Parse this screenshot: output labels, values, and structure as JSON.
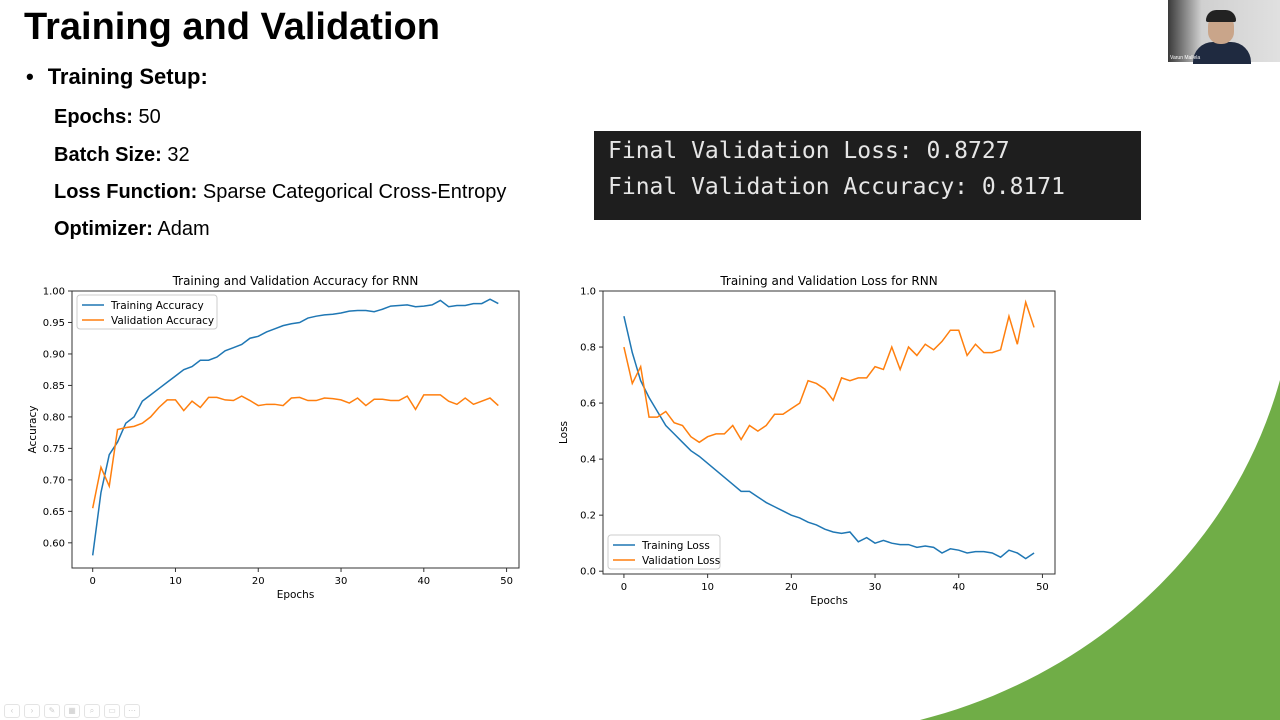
{
  "slide": {
    "title": "Training and Validation",
    "setup_heading": "Training Setup:",
    "params": [
      {
        "label": "Epochs:",
        "value": "50"
      },
      {
        "label": "Batch Size:",
        "value": "32"
      },
      {
        "label": "Loss Function:",
        "value": "Sparse Categorical Cross-Entropy"
      },
      {
        "label": "Optimizer:",
        "value": "Adam"
      }
    ],
    "console_lines": [
      "Final Validation Loss: 0.8727",
      "Final Validation Accuracy: 0.8171"
    ],
    "accent_color": "#70ad47"
  },
  "webcam": {
    "participant_name": "Varun Mallela"
  },
  "chart_data": [
    {
      "type": "line",
      "title": "Training and Validation Accuracy for RNN",
      "xlabel": "Epochs",
      "ylabel": "Accuracy",
      "xlim": [
        -2.5,
        51.5
      ],
      "ylim": [
        0.56,
        1.0
      ],
      "xticks": [
        0,
        10,
        20,
        30,
        40,
        50
      ],
      "yticks": [
        "0.60",
        "0.65",
        "0.70",
        "0.75",
        "0.80",
        "0.85",
        "0.90",
        "0.95",
        "1.00"
      ],
      "grid": false,
      "legend": "upper-left",
      "series": [
        {
          "name": "Training Accuracy",
          "color": "#1f77b4",
          "values": [
            0.58,
            0.68,
            0.74,
            0.76,
            0.79,
            0.8,
            0.825,
            0.835,
            0.845,
            0.855,
            0.865,
            0.875,
            0.88,
            0.89,
            0.89,
            0.895,
            0.905,
            0.91,
            0.915,
            0.925,
            0.928,
            0.935,
            0.94,
            0.945,
            0.948,
            0.95,
            0.957,
            0.96,
            0.962,
            0.963,
            0.965,
            0.968,
            0.969,
            0.969,
            0.967,
            0.971,
            0.976,
            0.977,
            0.978,
            0.975,
            0.976,
            0.978,
            0.985,
            0.975,
            0.977,
            0.977,
            0.98,
            0.98,
            0.987,
            0.98
          ]
        },
        {
          "name": "Validation Accuracy",
          "color": "#ff7f0e",
          "values": [
            0.655,
            0.72,
            0.69,
            0.78,
            0.783,
            0.785,
            0.79,
            0.8,
            0.815,
            0.827,
            0.827,
            0.81,
            0.825,
            0.815,
            0.831,
            0.831,
            0.827,
            0.826,
            0.833,
            0.826,
            0.818,
            0.82,
            0.82,
            0.818,
            0.83,
            0.831,
            0.826,
            0.826,
            0.83,
            0.829,
            0.827,
            0.822,
            0.83,
            0.818,
            0.828,
            0.828,
            0.826,
            0.826,
            0.833,
            0.812,
            0.835,
            0.835,
            0.835,
            0.825,
            0.82,
            0.83,
            0.82,
            0.825,
            0.83,
            0.818
          ]
        }
      ]
    },
    {
      "type": "line",
      "title": "Training and Validation Loss for RNN",
      "xlabel": "Epochs",
      "ylabel": "Loss",
      "xlim": [
        -2.5,
        51.5
      ],
      "ylim": [
        -0.01,
        1.0
      ],
      "xticks": [
        0,
        10,
        20,
        30,
        40,
        50
      ],
      "yticks": [
        "0.0",
        "0.2",
        "0.4",
        "0.6",
        "0.8",
        "1.0"
      ],
      "grid": false,
      "legend": "lower-left",
      "series": [
        {
          "name": "Training Loss",
          "color": "#1f77b4",
          "values": [
            0.91,
            0.78,
            0.68,
            0.62,
            0.57,
            0.52,
            0.49,
            0.46,
            0.43,
            0.41,
            0.385,
            0.36,
            0.335,
            0.31,
            0.285,
            0.285,
            0.265,
            0.245,
            0.23,
            0.215,
            0.2,
            0.19,
            0.175,
            0.165,
            0.15,
            0.14,
            0.135,
            0.14,
            0.105,
            0.12,
            0.1,
            0.11,
            0.1,
            0.095,
            0.095,
            0.085,
            0.09,
            0.085,
            0.065,
            0.08,
            0.075,
            0.065,
            0.07,
            0.07,
            0.065,
            0.05,
            0.075,
            0.065,
            0.045,
            0.065
          ]
        },
        {
          "name": "Validation Loss",
          "color": "#ff7f0e",
          "values": [
            0.8,
            0.67,
            0.73,
            0.55,
            0.55,
            0.57,
            0.53,
            0.52,
            0.48,
            0.46,
            0.48,
            0.49,
            0.49,
            0.52,
            0.47,
            0.52,
            0.5,
            0.52,
            0.56,
            0.56,
            0.58,
            0.6,
            0.68,
            0.67,
            0.65,
            0.61,
            0.69,
            0.68,
            0.69,
            0.69,
            0.73,
            0.72,
            0.8,
            0.72,
            0.8,
            0.77,
            0.81,
            0.79,
            0.82,
            0.86,
            0.86,
            0.77,
            0.81,
            0.78,
            0.78,
            0.79,
            0.91,
            0.81,
            0.96,
            0.87
          ]
        }
      ]
    }
  ]
}
